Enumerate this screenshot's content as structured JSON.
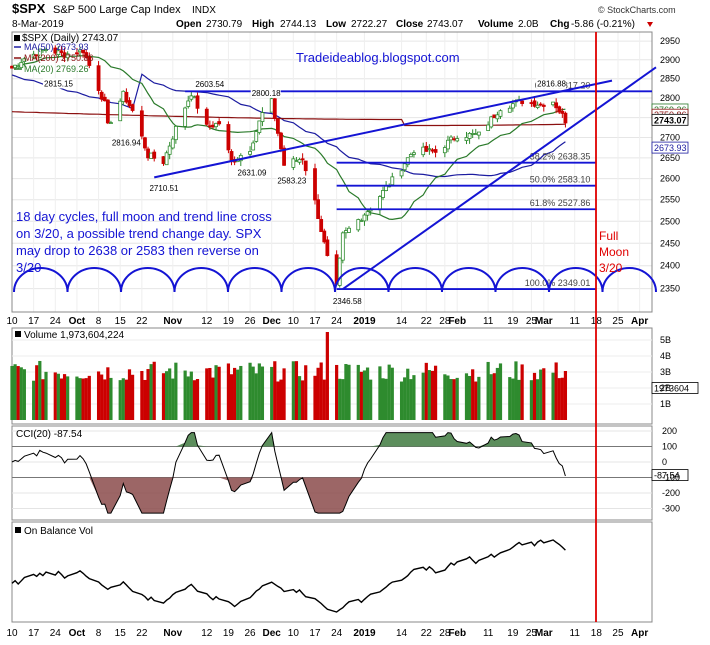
{
  "header": {
    "symbol": "$SPX",
    "name": "S&P 500 Large Cap Index",
    "exchange": "INDX",
    "date": "8-Mar-2019",
    "open_label": "Open",
    "open": "2730.79",
    "high_label": "High",
    "high": "2744.13",
    "low_label": "Low",
    "low": "2722.27",
    "close_label": "Close",
    "close": "2743.07",
    "volume_label": "Volume",
    "volume": "2.0B",
    "chg_label": "Chg",
    "chg": "-5.86 (-0.21%)",
    "watermark": "© StockCharts.com"
  },
  "legend": {
    "main": "$SPX (Daily) 2743.07",
    "ma50": "MA(50) 2673.93",
    "ma200": "MA(200) 2750.86",
    "ma20": "MA(20) 2769.26"
  },
  "annotations": {
    "blog": "Tradeideablog.blogspot.com",
    "note_lines": [
      "18 day cycles, full moon and trend line cross",
      "on 3/20, a possible trend change day. SPX",
      "may drop to 2638 or 2583 then reverse on",
      "3/20"
    ],
    "full_moon": [
      "Full",
      "Moon",
      "3/20"
    ],
    "price_labels": [
      "2815.15",
      "2816.94",
      "2710.51",
      "2603.54",
      "2631.09",
      "2800.18",
      "2583.23",
      "2346.58",
      "2816.88"
    ],
    "fib_labels": [
      "0.0% 2817.20",
      "38.2% 2638.35",
      "50.0% 2583.10",
      "61.8% 2527.86",
      "100.0% 2349.01"
    ]
  },
  "right_axis_tags": {
    "ma200": "2750.86",
    "ma20": "2769.26",
    "close": "2743.07",
    "ma50": "2673.93",
    "volume": "1973604",
    "cci": "-87.54"
  },
  "volume_panel": {
    "label": "Volume 1,973,604,224",
    "ticks": [
      "5B",
      "4B",
      "3B",
      "2B",
      "1B"
    ]
  },
  "cci_panel": {
    "label": "CCI(20) -87.54",
    "ticks": [
      "200",
      "100",
      "0",
      "-100",
      "-200",
      "-300"
    ]
  },
  "obv_panel": {
    "label": "On Balance Vol"
  },
  "date_axis": [
    "10",
    "17",
    "24",
    "Oct",
    "8",
    "15",
    "22",
    "Nov",
    "12",
    "19",
    "26",
    "Dec",
    "10",
    "17",
    "24",
    "2019",
    "14",
    "22",
    "28",
    "Feb",
    "11",
    "19",
    "25",
    "Mar",
    "11",
    "18",
    "25",
    "Apr"
  ],
  "price_axis": [
    "2950",
    "2900",
    "2850",
    "2800",
    "2750",
    "2700",
    "2650",
    "2600",
    "2550",
    "2500",
    "2450",
    "2400",
    "2350"
  ],
  "colors": {
    "up": "#2e8b2e",
    "down": "#cc0000",
    "ma50": "#1c1ca0",
    "ma200": "#8b1010",
    "ma20": "#2a7a2a",
    "trend": "#1414d4",
    "note": "#1414d4",
    "moon_line": "#e00000"
  },
  "chart_data": {
    "type": "candlestick",
    "title": "$SPX S&P 500 Large Cap Index",
    "x_range": [
      "2018-09-10",
      "2019-04-05"
    ],
    "ylim": [
      2300,
      2975
    ],
    "y_scale": "log",
    "key_points": [
      {
        "date": "2018-09-21",
        "label": "2816.94",
        "value": 2816.94
      },
      {
        "date": "2018-10-11",
        "label": "2710.51",
        "value": 2710.51
      },
      {
        "date": "2018-10-29",
        "label": "2603.54",
        "value": 2603.54
      },
      {
        "date": "2018-11-07",
        "label": "2815.15",
        "value": 2815.15
      },
      {
        "date": "2018-11-20",
        "label": "2631.09",
        "value": 2631.09
      },
      {
        "date": "2018-12-03",
        "label": "2800.18",
        "value": 2800.18
      },
      {
        "date": "2018-12-10",
        "label": "2583.23",
        "value": 2583.23
      },
      {
        "date": "2018-12-26",
        "label": "2346.58",
        "value": 2346.58
      },
      {
        "date": "2019-03-04",
        "label": "2816.88",
        "value": 2816.88
      }
    ],
    "fibonacci": [
      {
        "level": "0.0%",
        "value": 2817.2
      },
      {
        "level": "38.2%",
        "value": 2638.35
      },
      {
        "level": "50.0%",
        "value": 2583.1
      },
      {
        "level": "61.8%",
        "value": 2527.86
      },
      {
        "level": "100.0%",
        "value": 2349.01
      }
    ],
    "horizontal_lines": [
      2817.2,
      2349.01
    ],
    "vertical_marker": {
      "date": "2019-03-20",
      "label": "Full Moon 3/20"
    },
    "series": [
      {
        "name": "MA(50)",
        "last": 2673.93
      },
      {
        "name": "MA(200)",
        "last": 2750.86
      },
      {
        "name": "MA(20)",
        "last": 2769.26
      }
    ],
    "close_path": [
      [
        "2018-09-10",
        2878
      ],
      [
        "2018-09-14",
        2904
      ],
      [
        "2018-09-21",
        2929
      ],
      [
        "2018-09-27",
        2914
      ],
      [
        "2018-10-03",
        2925
      ],
      [
        "2018-10-05",
        2885
      ],
      [
        "2018-10-10",
        2785
      ],
      [
        "2018-10-11",
        2728
      ],
      [
        "2018-10-16",
        2809
      ],
      [
        "2018-10-19",
        2767
      ],
      [
        "2018-10-24",
        2656
      ],
      [
        "2018-10-29",
        2641
      ],
      [
        "2018-11-02",
        2723
      ],
      [
        "2018-11-07",
        2813
      ],
      [
        "2018-11-12",
        2726
      ],
      [
        "2018-11-16",
        2736
      ],
      [
        "2018-11-20",
        2641
      ],
      [
        "2018-11-26",
        2673
      ],
      [
        "2018-11-30",
        2760
      ],
      [
        "2018-12-03",
        2790
      ],
      [
        "2018-12-07",
        2633
      ],
      [
        "2018-12-13",
        2650
      ],
      [
        "2018-12-17",
        2545
      ],
      [
        "2018-12-21",
        2416
      ],
      [
        "2018-12-24",
        2351
      ],
      [
        "2018-12-26",
        2467
      ],
      [
        "2019-01-04",
        2532
      ],
      [
        "2019-01-11",
        2596
      ],
      [
        "2019-01-18",
        2670
      ],
      [
        "2019-01-25",
        2664
      ],
      [
        "2019-02-01",
        2706
      ],
      [
        "2019-02-08",
        2707
      ],
      [
        "2019-02-15",
        2775
      ],
      [
        "2019-02-22",
        2792
      ],
      [
        "2019-02-28",
        2784
      ],
      [
        "2019-03-04",
        2792
      ],
      [
        "2019-03-08",
        2743
      ]
    ]
  }
}
